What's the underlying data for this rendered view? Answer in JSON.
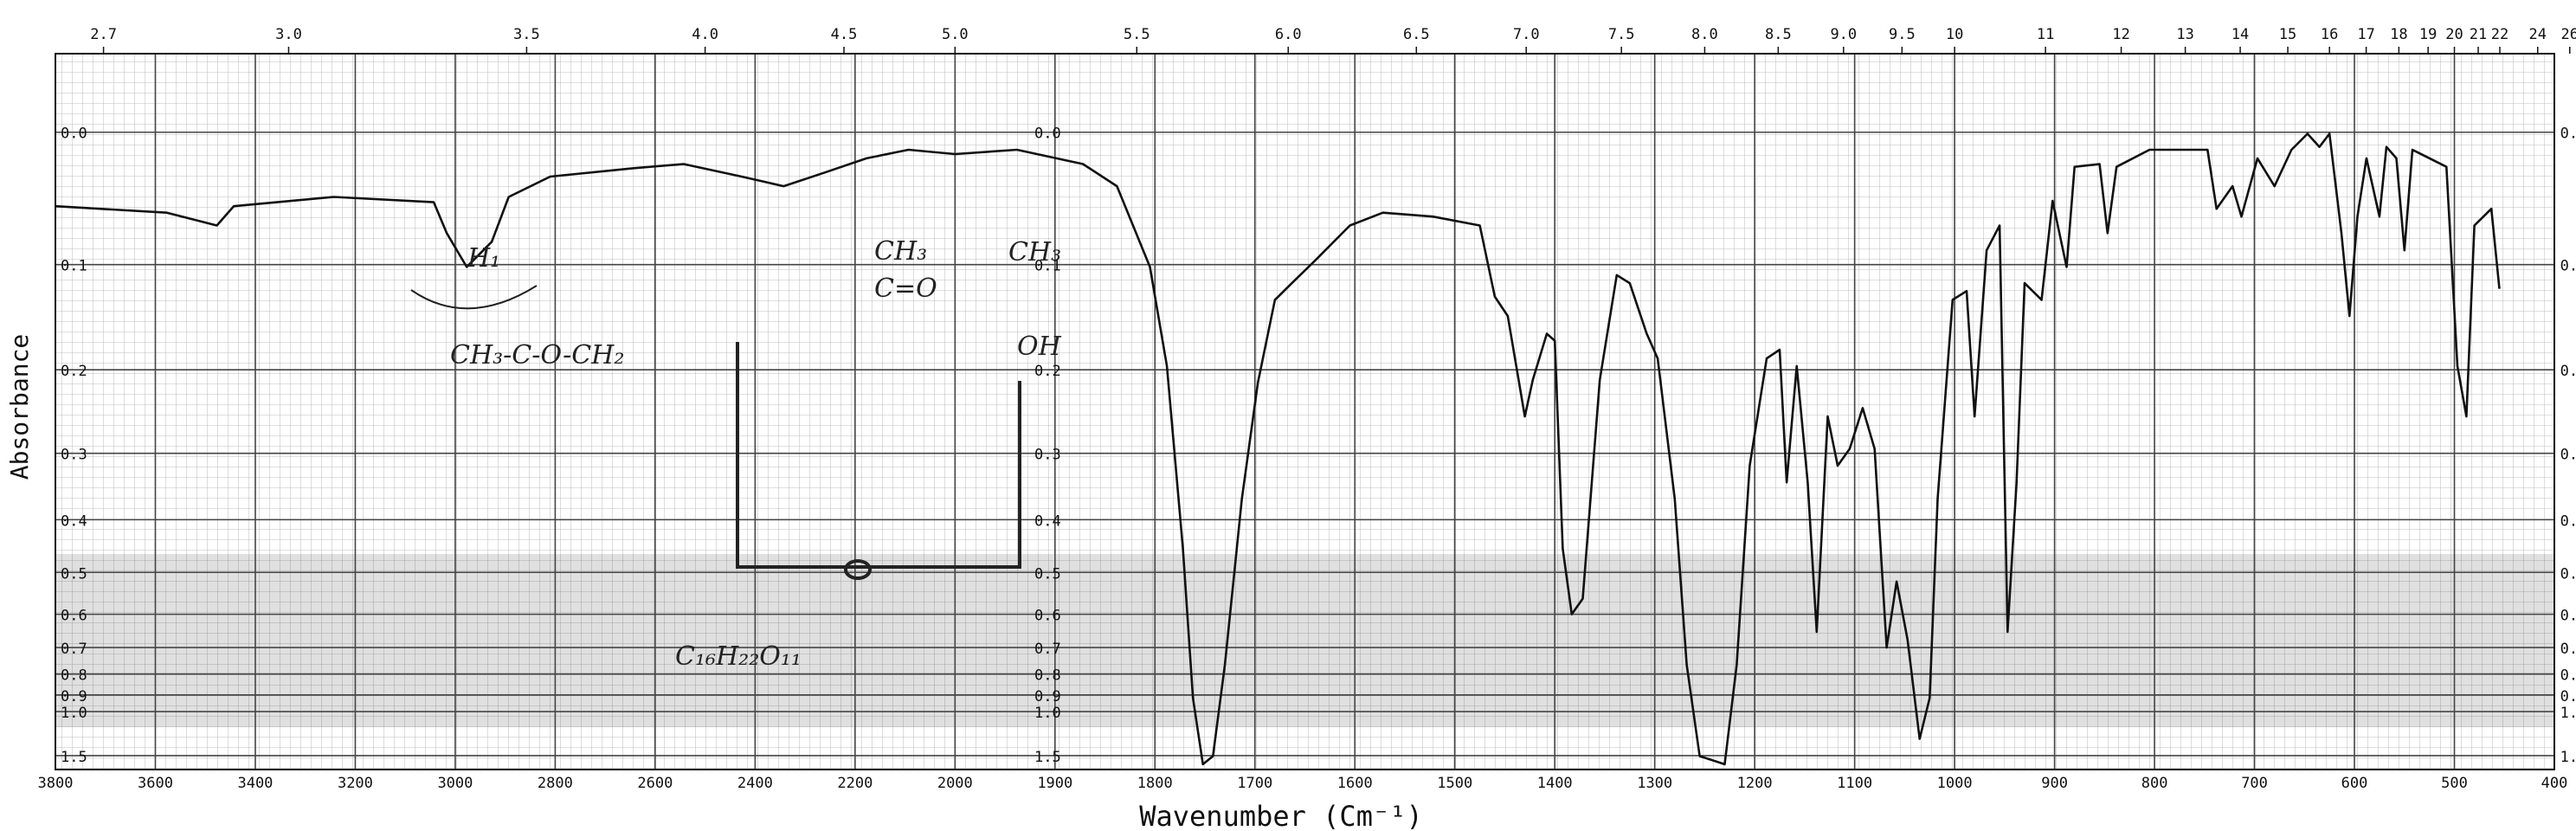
{
  "chart_data": {
    "type": "line",
    "xlabel": "Wavenumber (Cm⁻¹)",
    "ylabel": "Absorbance",
    "yscale": "absorbance",
    "color": "#111",
    "grid": true,
    "xlim": [
      3800,
      400
    ],
    "xticks": [
      3800,
      3600,
      3400,
      3200,
      3000,
      2800,
      2600,
      2400,
      2200,
      2000,
      1900,
      1800,
      1700,
      1600,
      1500,
      1400,
      1300,
      1200,
      1100,
      1000,
      900,
      800,
      700,
      600,
      500,
      400
    ],
    "x2ticks": [
      2.7,
      {
        "value": 3,
        "label": "3.0"
      },
      3.5,
      {
        "value": 4,
        "label": "4.0"
      },
      4.5,
      {
        "value": 5,
        "label": "5.0"
      },
      5.5,
      {
        "value": 6,
        "label": "6.0"
      },
      6.5,
      {
        "value": 7,
        "label": "7.0"
      },
      7.5,
      {
        "value": 8,
        "label": "8.0"
      },
      8.5,
      {
        "value": 9,
        "label": "9.0"
      },
      9.5,
      10,
      11,
      12,
      13,
      14,
      15,
      16,
      17,
      18,
      19,
      20,
      21,
      22,
      24,
      26
    ],
    "ylim": [
      -0.05,
      2
    ],
    "yticks": [
      {
        "value": 0,
        "label": "0.0"
      },
      0.1,
      0.2,
      0.3,
      0.4,
      0.5,
      0.6,
      0.7,
      0.8,
      0.9,
      {
        "value": 1,
        "label": "1.0"
      },
      1.5
    ],
    "annotations": [
      "CH₃-C-O-CH₂",
      "H₁",
      "CH₃",
      "C=O",
      "OH",
      "CH₃",
      "C₁₆H₂₂O₁₁"
    ],
    "x": [
      3800,
      3577,
      3477,
      3443,
      3243,
      3043,
      3017,
      2977,
      2927,
      2893,
      2810,
      2643,
      2543,
      2427,
      2343,
      2260,
      2177,
      2093,
      2000,
      1938,
      1872,
      1838,
      1805,
      1788,
      1772,
      1762,
      1752,
      1742,
      1730,
      1713,
      1697,
      1680,
      1663,
      1638,
      1605,
      1572,
      1522,
      1475,
      1460,
      1447,
      1430,
      1422,
      1408,
      1400,
      1392,
      1383,
      1372,
      1355,
      1338,
      1325,
      1308,
      1297,
      1280,
      1268,
      1255,
      1230,
      1218,
      1205,
      1188,
      1175,
      1168,
      1158,
      1147,
      1138,
      1127,
      1117,
      1105,
      1092,
      1080,
      1068,
      1058,
      1047,
      1035,
      1025,
      1017,
      1002,
      988,
      980,
      968,
      955,
      947,
      938,
      930,
      913,
      902,
      888,
      880,
      855,
      847,
      838,
      805,
      747,
      738,
      722,
      713,
      697,
      680,
      663,
      647,
      635,
      625,
      613,
      605,
      597,
      588,
      575,
      568,
      558,
      550,
      542,
      508,
      497,
      488,
      480,
      463,
      455
    ],
    "values": [
      0.053,
      0.058,
      0.068,
      0.053,
      0.046,
      0.05,
      0.074,
      0.102,
      0.081,
      0.046,
      0.031,
      0.025,
      0.022,
      0.031,
      0.038,
      0.028,
      0.018,
      0.012,
      0.015,
      0.012,
      0.022,
      0.038,
      0.102,
      0.196,
      0.452,
      0.917,
      1.74,
      1.51,
      0.762,
      0.366,
      0.214,
      0.131,
      0.116,
      0.095,
      0.068,
      0.058,
      0.061,
      0.068,
      0.128,
      0.146,
      0.253,
      0.211,
      0.163,
      0.17,
      0.452,
      0.6,
      0.56,
      0.211,
      0.109,
      0.116,
      0.163,
      0.188,
      0.366,
      0.762,
      1.51,
      1.74,
      0.762,
      0.317,
      0.188,
      0.179,
      0.341,
      0.196,
      0.341,
      0.65,
      0.253,
      0.317,
      0.294,
      0.243,
      0.294,
      0.7,
      0.52,
      0.675,
      1.24,
      0.917,
      0.366,
      0.131,
      0.123,
      0.253,
      0.088,
      0.068,
      0.65,
      0.341,
      0.116,
      0.131,
      0.049,
      0.102,
      0.024,
      0.022,
      0.074,
      0.024,
      0.012,
      0.012,
      0.055,
      0.038,
      0.061,
      0.018,
      0.038,
      0.012,
      0.001,
      0.01,
      0.001,
      0.074,
      0.146,
      0.061,
      0.018,
      0.061,
      0.01,
      0.018,
      0.088,
      0.012,
      0.024,
      0.196,
      0.253,
      0.068,
      0.055,
      0.121
    ]
  }
}
